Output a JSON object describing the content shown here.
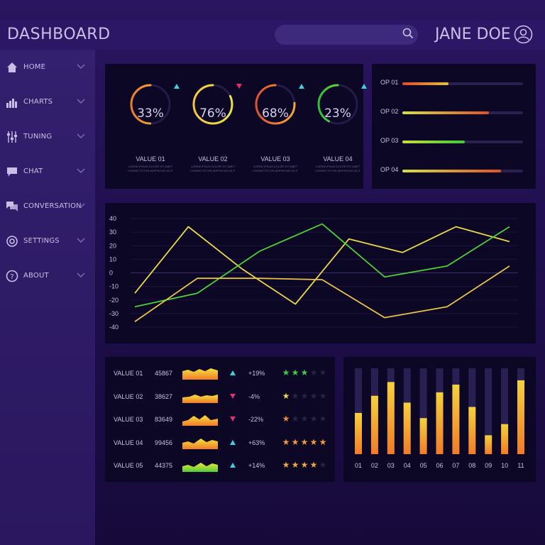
{
  "header": {
    "title": "DASHBOARD",
    "user_name": "JANE DOE",
    "search_placeholder": ""
  },
  "sidebar": {
    "items": [
      {
        "label": "HOME",
        "icon": "home-icon"
      },
      {
        "label": "CHARTS",
        "icon": "bar-chart-icon"
      },
      {
        "label": "TUNING",
        "icon": "sliders-icon"
      },
      {
        "label": "CHAT",
        "icon": "chat-icon"
      },
      {
        "label": "CONVERSATION",
        "icon": "conversation-icon"
      },
      {
        "label": "SETTINGS",
        "icon": "gear-icon"
      },
      {
        "label": "ABOUT",
        "icon": "help-icon"
      }
    ]
  },
  "gauges": [
    {
      "label": "VALUE 01",
      "percent": 33,
      "display": "33%",
      "trend": "up",
      "sub": "LOREM IPSUM DOLOR SIT AMET\nCONSECTETUR ADIPISCING ELIT",
      "colors": [
        "#f07b2a",
        "#f5c63c"
      ]
    },
    {
      "label": "VALUE 02",
      "percent": 76,
      "display": "76%",
      "trend": "down",
      "sub": "LOREM IPSUM DOLOR SIT AMET\nCONSECTETUR ADIPISCING ELIT",
      "colors": [
        "#f5c63c",
        "#e8e24a"
      ]
    },
    {
      "label": "VALUE 03",
      "percent": 68,
      "display": "68%",
      "trend": "up",
      "sub": "LOREM IPSUM DOLOR SIT AMET\nCONSECTETUR ADIPISCING ELIT",
      "colors": [
        "#e0502e",
        "#f5a63c"
      ]
    },
    {
      "label": "VALUE 04",
      "percent": 23,
      "display": "23%",
      "trend": "up",
      "sub": "LOREM IPSUM DOLOR SIT AMET\nCONSECTETUR ADIPISCING ELIT",
      "colors": [
        "#2fbf3a",
        "#9be23c"
      ]
    }
  ],
  "ops": [
    {
      "label": "OP 01",
      "value": 0.38,
      "colors": [
        "#e0c03c",
        "#e04a2e"
      ]
    },
    {
      "label": "OP 02",
      "value": 0.72,
      "colors": [
        "#e0502e",
        "#d8e03c"
      ]
    },
    {
      "label": "OP 03",
      "value": 0.52,
      "colors": [
        "#3cc83a",
        "#c8e03c"
      ]
    },
    {
      "label": "OP 04",
      "value": 0.82,
      "colors": [
        "#e0502e",
        "#d8e03c"
      ]
    }
  ],
  "line_chart": {
    "yticks": [
      "40",
      "30",
      "20",
      "10",
      "0",
      "-10",
      "-20",
      "-30",
      "-40"
    ],
    "ylim": [
      -40,
      40
    ],
    "series": [
      {
        "color": "#e8d84a",
        "values": [
          -15,
          34,
          3,
          -23,
          25,
          15,
          34,
          23
        ]
      },
      {
        "color": "#4cd038",
        "values": [
          -25,
          -15,
          16,
          36,
          -3,
          5,
          34
        ]
      },
      {
        "color": "#e8c24a",
        "values": [
          -36,
          -4,
          -4,
          -5,
          -33,
          -25,
          5
        ]
      }
    ]
  },
  "table": {
    "rows": [
      {
        "name": "VALUE 01",
        "number": "45867",
        "trend": "up",
        "pct": "+19%",
        "stars": 3,
        "star_color": "#3fcf3a"
      },
      {
        "name": "VALUE 02",
        "number": "38627",
        "trend": "down",
        "pct": "-4%",
        "stars": 1,
        "star_color": "#e8d84a"
      },
      {
        "name": "VALUE 03",
        "number": "83649",
        "trend": "down",
        "pct": "-22%",
        "stars": 1,
        "star_color": "#f08a3a"
      },
      {
        "name": "VALUE 04",
        "number": "99456",
        "trend": "up",
        "pct": "+63%",
        "stars": 5,
        "star_color": "#f09a3a"
      },
      {
        "name": "VALUE 05",
        "number": "44375",
        "trend": "up",
        "pct": "+14%",
        "stars": 4,
        "star_color": "#f0a83a"
      }
    ]
  },
  "chart_data": {
    "type": "bar",
    "categories": [
      "01",
      "02",
      "03",
      "04",
      "05",
      "06",
      "07",
      "08",
      "09",
      "10",
      "11"
    ],
    "values": [
      0.48,
      0.68,
      0.84,
      0.6,
      0.42,
      0.72,
      0.81,
      0.55,
      0.22,
      0.35,
      0.86
    ],
    "ylim": [
      0,
      1
    ]
  },
  "colors": {
    "accent_up": "#3fd0e0",
    "accent_down": "#e0306a",
    "panel": "#0b0724"
  }
}
